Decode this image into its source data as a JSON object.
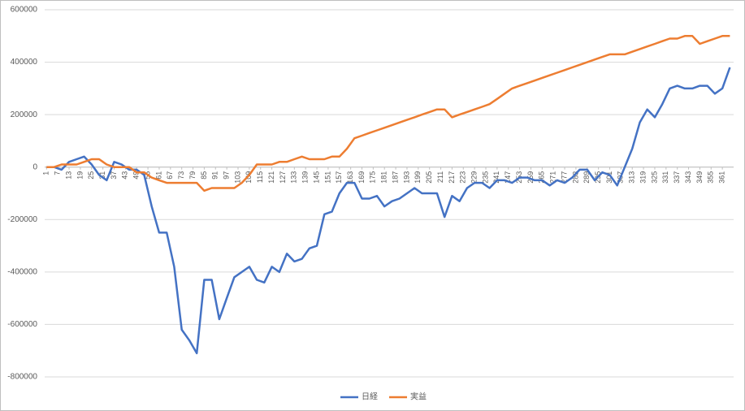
{
  "chart_data": {
    "type": "line",
    "x": [
      1,
      5,
      9,
      13,
      17,
      21,
      25,
      29,
      33,
      37,
      41,
      45,
      49,
      53,
      57,
      61,
      65,
      69,
      73,
      77,
      81,
      85,
      89,
      93,
      97,
      101,
      105,
      109,
      113,
      117,
      121,
      125,
      129,
      133,
      137,
      141,
      145,
      149,
      153,
      157,
      161,
      165,
      169,
      173,
      177,
      181,
      185,
      189,
      193,
      197,
      201,
      205,
      209,
      213,
      217,
      221,
      225,
      229,
      233,
      237,
      241,
      245,
      249,
      253,
      257,
      261,
      265,
      269,
      273,
      277,
      281,
      285,
      289,
      293,
      297,
      301,
      305,
      309,
      313,
      317,
      321,
      325,
      329,
      333,
      337,
      341,
      345,
      349,
      353,
      357,
      361,
      365
    ],
    "series": [
      {
        "name": "日経",
        "color": "#4472c4",
        "values": [
          0,
          0,
          -10000,
          20000,
          30000,
          40000,
          10000,
          -30000,
          -50000,
          20000,
          10000,
          -10000,
          -10000,
          -30000,
          -150000,
          -250000,
          -250000,
          -380000,
          -620000,
          -660000,
          -710000,
          -430000,
          -430000,
          -580000,
          -500000,
          -420000,
          -400000,
          -380000,
          -430000,
          -440000,
          -380000,
          -400000,
          -330000,
          -360000,
          -350000,
          -310000,
          -300000,
          -180000,
          -170000,
          -100000,
          -60000,
          -60000,
          -120000,
          -120000,
          -110000,
          -150000,
          -130000,
          -120000,
          -100000,
          -80000,
          -100000,
          -100000,
          -100000,
          -190000,
          -110000,
          -130000,
          -80000,
          -60000,
          -60000,
          -80000,
          -50000,
          -50000,
          -60000,
          -40000,
          -40000,
          -50000,
          -50000,
          -70000,
          -50000,
          -60000,
          -40000,
          -10000,
          -10000,
          -50000,
          -20000,
          -30000,
          -70000,
          0,
          70000,
          170000,
          220000,
          190000,
          240000,
          300000,
          310000,
          300000,
          300000,
          310000,
          310000,
          280000,
          300000,
          380000
        ]
      },
      {
        "name": "実益",
        "color": "#ed7d31",
        "values": [
          0,
          0,
          10000,
          10000,
          10000,
          20000,
          30000,
          30000,
          10000,
          0,
          0,
          0,
          -20000,
          -20000,
          -40000,
          -50000,
          -60000,
          -60000,
          -60000,
          -60000,
          -60000,
          -90000,
          -80000,
          -80000,
          -80000,
          -80000,
          -60000,
          -30000,
          10000,
          10000,
          10000,
          20000,
          20000,
          30000,
          40000,
          30000,
          30000,
          30000,
          40000,
          40000,
          70000,
          110000,
          120000,
          130000,
          140000,
          150000,
          160000,
          170000,
          180000,
          190000,
          200000,
          210000,
          220000,
          220000,
          190000,
          200000,
          210000,
          220000,
          230000,
          240000,
          260000,
          280000,
          300000,
          310000,
          320000,
          330000,
          340000,
          350000,
          360000,
          370000,
          380000,
          390000,
          400000,
          410000,
          420000,
          430000,
          430000,
          430000,
          440000,
          450000,
          460000,
          470000,
          480000,
          490000,
          490000,
          500000,
          500000,
          470000,
          480000,
          490000,
          500000,
          500000
        ]
      }
    ],
    "xlim": [
      0,
      367
    ],
    "xticks": [
      1,
      7,
      13,
      19,
      25,
      31,
      37,
      43,
      49,
      55,
      61,
      67,
      73,
      79,
      85,
      91,
      97,
      103,
      109,
      115,
      121,
      127,
      133,
      139,
      145,
      151,
      157,
      163,
      169,
      175,
      181,
      187,
      193,
      199,
      205,
      211,
      217,
      223,
      229,
      235,
      241,
      247,
      253,
      259,
      265,
      271,
      277,
      283,
      289,
      295,
      301,
      307,
      313,
      319,
      325,
      331,
      337,
      343,
      349,
      355,
      361
    ],
    "ylim": [
      -800000,
      600000
    ],
    "yticks": [
      -800000,
      -600000,
      -400000,
      -200000,
      0,
      200000,
      400000,
      600000
    ],
    "grid": true,
    "legend": "bottom"
  }
}
